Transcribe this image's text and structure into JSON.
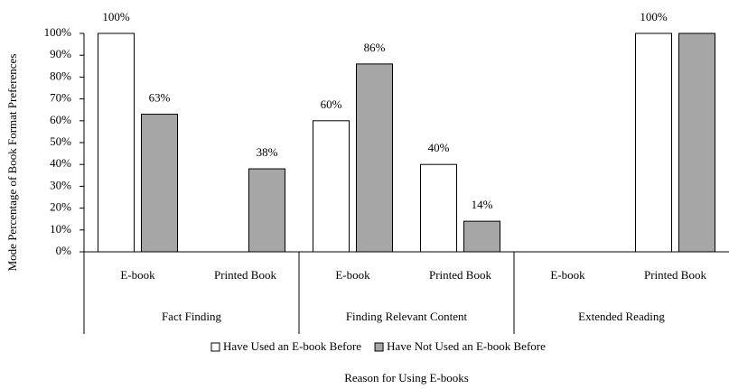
{
  "chart_data": {
    "type": "bar",
    "x_label": "Reason for Using E-books",
    "y_label": "Mode Percentage of Book Format Preferences",
    "categories": [
      "E-book",
      "Printed Book",
      "E-book",
      "Printed Book",
      "E-book",
      "Printed Book"
    ],
    "groups": [
      "Fact Finding",
      "Finding Relevant Content",
      "Extended Reading"
    ],
    "series": [
      {
        "name": "Have Used an E-book Before",
        "color": "#ffffff",
        "values": [
          100,
          null,
          60,
          40,
          null,
          100
        ],
        "value_labels": [
          "100%",
          null,
          "60%",
          "40%",
          null,
          "100%"
        ]
      },
      {
        "name": "Have Not Used an E-book Before",
        "color": "#a6a6a6",
        "values": [
          63,
          38,
          86,
          14,
          null,
          100
        ],
        "value_labels": [
          "63%",
          "38%",
          "86%",
          "14%",
          null,
          null
        ]
      }
    ],
    "ylim": [
      0,
      100
    ],
    "yticks": [
      {
        "value": 0,
        "label": "0%"
      },
      {
        "value": 10,
        "label": "10%"
      },
      {
        "value": 20,
        "label": "20%"
      },
      {
        "value": 30,
        "label": "30%"
      },
      {
        "value": 40,
        "label": "40%"
      },
      {
        "value": 50,
        "label": "50%"
      },
      {
        "value": 60,
        "label": "60%"
      },
      {
        "value": 70,
        "label": "70%"
      },
      {
        "value": 80,
        "label": "80%"
      },
      {
        "value": 90,
        "label": "90%"
      },
      {
        "value": 100,
        "label": "100%"
      }
    ],
    "grid": false,
    "legend": "bottom"
  }
}
